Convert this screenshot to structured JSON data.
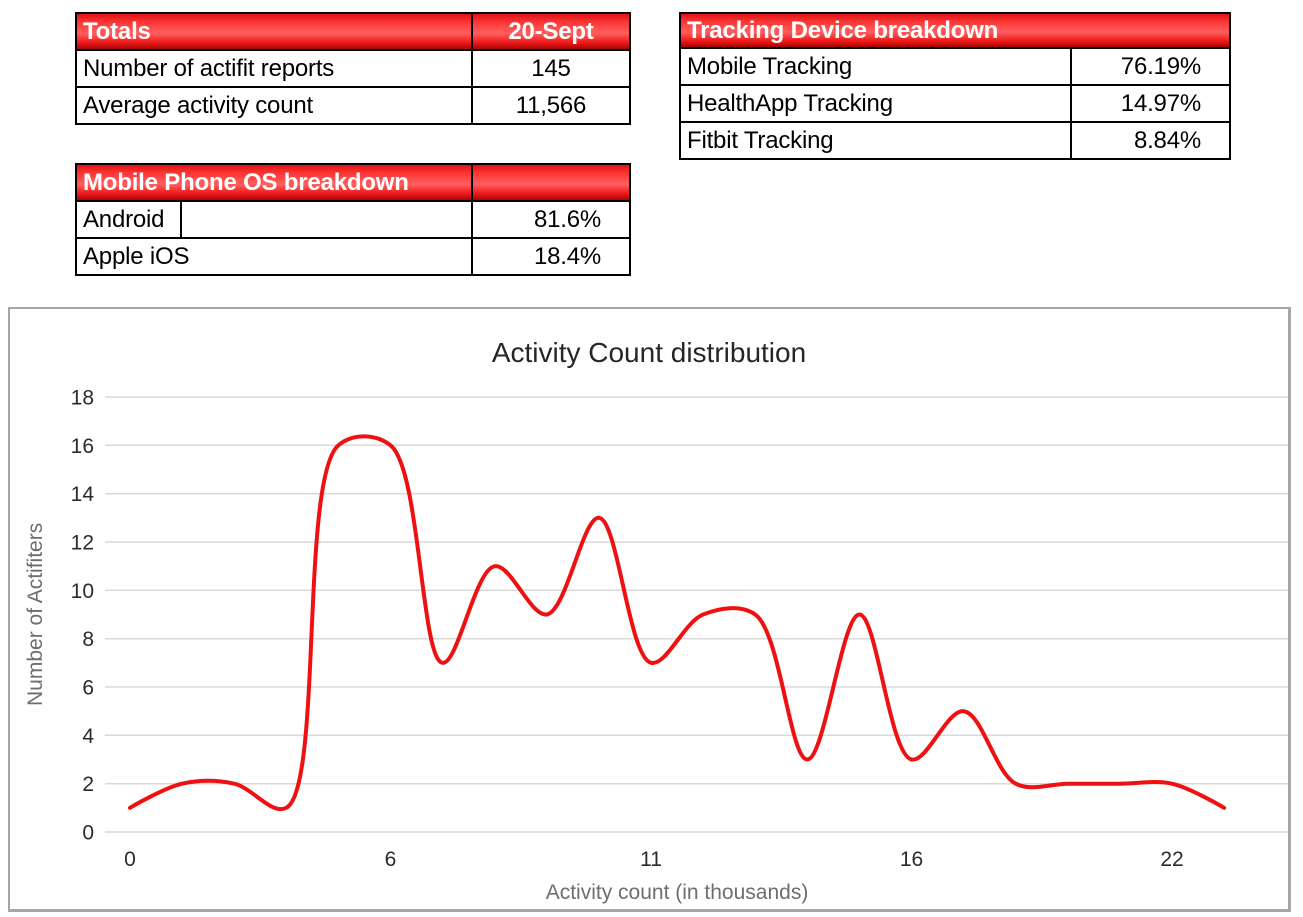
{
  "tables": {
    "totals": {
      "header_label": "Totals",
      "header_value": "20-Sept",
      "rows": [
        {
          "label": "Number of actifit reports",
          "value": "145"
        },
        {
          "label": "Average activity count",
          "value": "11,566"
        }
      ]
    },
    "os": {
      "header_label": "Mobile Phone OS breakdown",
      "header_value": "",
      "rows": [
        {
          "label": "Android",
          "value": "81.6%"
        },
        {
          "label": "Apple iOS",
          "value": "18.4%"
        }
      ]
    },
    "tracking": {
      "header_label": "Tracking Device breakdown",
      "rows": [
        {
          "label": "Mobile Tracking",
          "value": "76.19%"
        },
        {
          "label": "HealthApp Tracking",
          "value": "14.97%"
        },
        {
          "label": "Fitbit Tracking",
          "value": "8.84%"
        }
      ]
    }
  },
  "chart_data": {
    "type": "line",
    "title": "Activity Count distribution",
    "xlabel": "Activity count (in thousands)",
    "ylabel": "Number of Actifiters",
    "ylim": [
      0,
      18
    ],
    "y_ticks": [
      0,
      2,
      4,
      6,
      8,
      10,
      12,
      14,
      16,
      18
    ],
    "x_tick_labels": [
      "0",
      "6",
      "11",
      "16",
      "22"
    ],
    "x_tick_indices": [
      0,
      5,
      10,
      15,
      20
    ],
    "grid": true,
    "legend": false,
    "smoothed": true,
    "line_color": "#ee1111",
    "grid_color": "#d9d9d9",
    "series": [
      {
        "name": "Number of Actifiters",
        "values": [
          1,
          2,
          2,
          1,
          16,
          16,
          7,
          11,
          9,
          13,
          7,
          9,
          9,
          3,
          9,
          3,
          5,
          2,
          2,
          2,
          2,
          1
        ]
      }
    ]
  },
  "colors": {
    "header_red_top": "#e01212",
    "header_red_mid": "#ff5f5f",
    "header_red_bottom": "#a40606",
    "table_border": "#000000",
    "table_text": "#000000",
    "header_text": "#ffffff",
    "chart_frame_border": "#a6a6a6",
    "chart_title_text": "#262626",
    "axis_tick_text": "#2b2b2b",
    "axis_title_text": "#6e6e6e"
  }
}
